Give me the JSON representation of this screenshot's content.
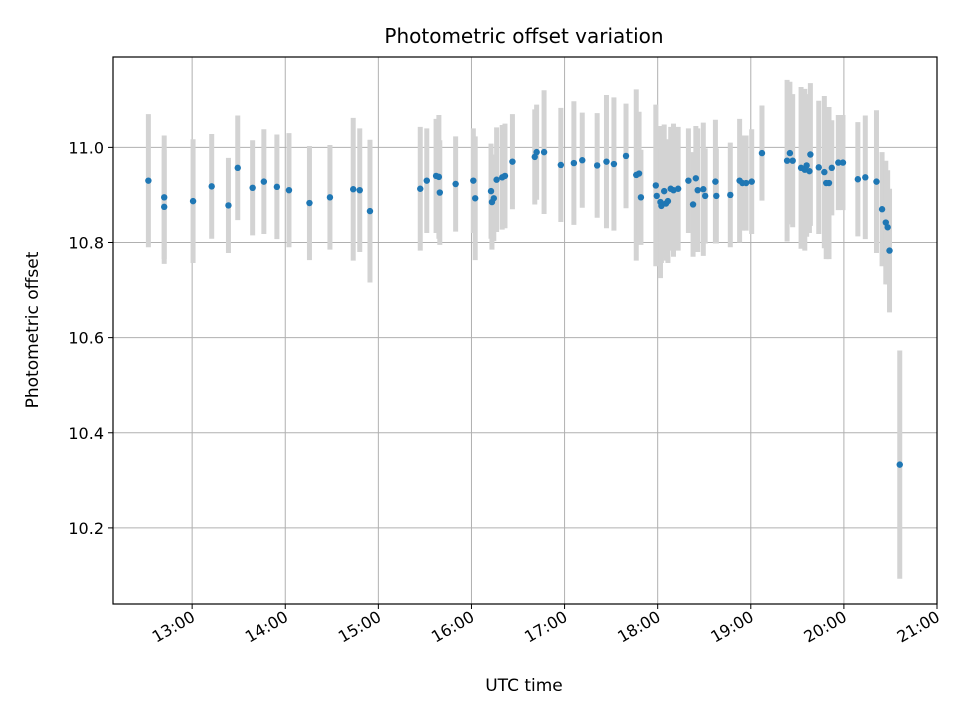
{
  "chart_data": {
    "type": "scatter",
    "title": "Photometric offset variation",
    "xlabel": "UTC time",
    "ylabel": "Photometric offset",
    "x_unit": "UTC clock time (decimal hours)",
    "xlim": [
      12.15,
      21.0
    ],
    "ylim": [
      10.04,
      11.19
    ],
    "x_ticks": [
      13,
      14,
      15,
      16,
      17,
      18,
      19,
      20,
      21
    ],
    "x_tick_labels": [
      "13:00",
      "14:00",
      "15:00",
      "16:00",
      "17:00",
      "18:00",
      "19:00",
      "20:00",
      "21:00"
    ],
    "y_ticks": [
      10.2,
      10.4,
      10.6,
      10.8,
      11.0
    ],
    "y_tick_labels": [
      "10.2",
      "10.4",
      "10.6",
      "10.8",
      "11.0"
    ],
    "grid": true,
    "marker_color": "#1f77b4",
    "errorbar_color": "#d3d3d3",
    "series": [
      {
        "x": [
          12.53,
          12.7,
          12.7,
          13.01,
          13.21,
          13.39,
          13.49,
          13.65,
          13.77,
          13.91,
          14.04,
          14.26,
          14.48,
          14.73,
          14.8,
          14.91,
          15.45,
          15.52,
          15.62,
          15.65,
          15.66,
          15.83,
          16.02,
          16.04,
          16.21,
          16.22,
          16.24,
          16.27,
          16.33,
          16.36,
          16.44,
          16.68,
          16.7,
          16.78,
          16.96,
          17.1,
          17.19,
          17.35,
          17.45,
          17.53,
          17.66,
          17.77,
          17.8,
          17.82,
          17.98,
          17.99,
          18.03,
          18.04,
          18.07,
          18.09,
          18.11,
          18.14,
          18.17,
          18.22,
          18.33,
          18.38,
          18.41,
          18.43,
          18.49,
          18.51,
          18.62,
          18.63,
          18.78,
          18.88,
          18.91,
          18.95,
          19.01,
          19.12,
          19.39,
          19.42,
          19.45,
          19.54,
          19.58,
          19.6,
          19.63,
          19.64,
          19.73,
          19.79,
          19.81,
          19.84,
          19.87,
          19.94,
          19.99,
          20.15,
          20.23,
          20.35,
          20.41,
          20.45,
          20.47,
          20.49,
          20.6
        ],
        "y": [
          10.93,
          10.895,
          10.875,
          10.887,
          10.918,
          10.878,
          10.957,
          10.915,
          10.928,
          10.917,
          10.91,
          10.883,
          10.895,
          10.912,
          10.91,
          10.866,
          10.913,
          10.93,
          10.94,
          10.938,
          10.905,
          10.923,
          10.93,
          10.893,
          10.908,
          10.885,
          10.893,
          10.932,
          10.937,
          10.94,
          10.97,
          10.98,
          10.99,
          10.99,
          10.963,
          10.967,
          10.973,
          10.962,
          10.97,
          10.965,
          10.982,
          10.942,
          10.945,
          10.895,
          10.92,
          10.898,
          10.885,
          10.877,
          10.908,
          10.882,
          10.887,
          10.913,
          10.91,
          10.913,
          10.93,
          10.88,
          10.935,
          10.91,
          10.912,
          10.898,
          10.928,
          10.898,
          10.9,
          10.93,
          10.925,
          10.925,
          10.928,
          10.988,
          10.972,
          10.988,
          10.972,
          10.957,
          10.953,
          10.962,
          10.95,
          10.985,
          10.958,
          10.948,
          10.925,
          10.925,
          10.957,
          10.968,
          10.968,
          10.933,
          10.937,
          10.928,
          10.87,
          10.842,
          10.832,
          10.783,
          10.333
        ],
        "err": [
          0.14,
          0.13,
          0.12,
          0.13,
          0.11,
          0.1,
          0.11,
          0.1,
          0.11,
          0.11,
          0.12,
          0.12,
          0.11,
          0.15,
          0.13,
          0.15,
          0.13,
          0.11,
          0.12,
          0.13,
          0.11,
          0.1,
          0.11,
          0.13,
          0.1,
          0.1,
          0.09,
          0.11,
          0.11,
          0.11,
          0.1,
          0.1,
          0.1,
          0.13,
          0.12,
          0.13,
          0.1,
          0.11,
          0.14,
          0.14,
          0.11,
          0.18,
          0.13,
          0.1,
          0.17,
          0.14,
          0.16,
          0.12,
          0.14,
          0.12,
          0.13,
          0.13,
          0.14,
          0.13,
          0.11,
          0.11,
          0.11,
          0.13,
          0.14,
          0.1,
          0.13,
          0.1,
          0.11,
          0.13,
          0.1,
          0.1,
          0.11,
          0.1,
          0.17,
          0.15,
          0.14,
          0.17,
          0.17,
          0.15,
          0.13,
          0.15,
          0.14,
          0.16,
          0.16,
          0.16,
          0.1,
          0.1,
          0.1,
          0.12,
          0.13,
          0.15,
          0.12,
          0.13,
          0.12,
          0.13,
          0.24
        ]
      }
    ]
  }
}
